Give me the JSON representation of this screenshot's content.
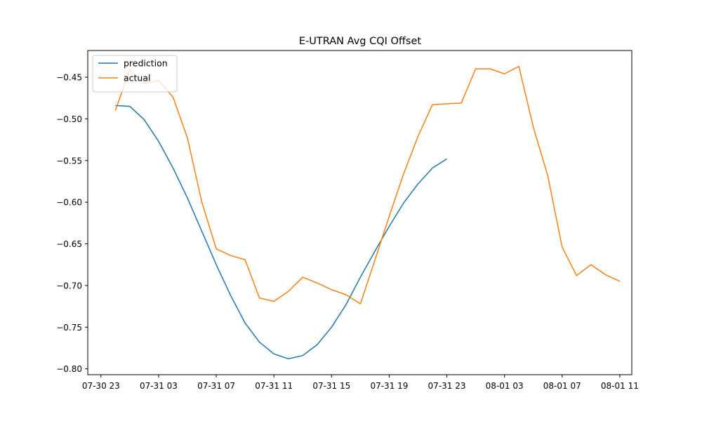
{
  "chart_data": {
    "type": "line",
    "title": "E-UTRAN Avg CQI Offset",
    "xlabel": "",
    "ylabel": "",
    "x_ticks": [
      "07-30 23",
      "07-31 03",
      "07-31 07",
      "07-31 11",
      "07-31 15",
      "07-31 19",
      "07-31 23",
      "08-01 03",
      "08-01 07",
      "08-01 11"
    ],
    "y_ticks": [
      -0.45,
      -0.5,
      -0.55,
      -0.6,
      -0.65,
      -0.7,
      -0.75,
      -0.8
    ],
    "xlim": [
      "07-30 22:05",
      "08-01 11:50"
    ],
    "ylim": [
      -0.807,
      -0.418
    ],
    "grid": false,
    "legend_position": "upper-left",
    "series": [
      {
        "name": "prediction",
        "color": "#1f77b4",
        "x": [
          "07-31 00",
          "07-31 01",
          "07-31 02",
          "07-31 03",
          "07-31 04",
          "07-31 05",
          "07-31 06",
          "07-31 07",
          "07-31 08",
          "07-31 09",
          "07-31 10",
          "07-31 11",
          "07-31 12",
          "07-31 13",
          "07-31 14",
          "07-31 15",
          "07-31 16",
          "07-31 17",
          "07-31 18",
          "07-31 19",
          "07-31 20",
          "07-31 21",
          "07-31 22",
          "07-31 23"
        ],
        "values": [
          -0.484,
          -0.485,
          -0.501,
          -0.527,
          -0.559,
          -0.595,
          -0.635,
          -0.675,
          -0.712,
          -0.745,
          -0.768,
          -0.782,
          -0.788,
          -0.784,
          -0.771,
          -0.75,
          -0.723,
          -0.69,
          -0.659,
          -0.629,
          -0.601,
          -0.578,
          -0.559,
          -0.548
        ]
      },
      {
        "name": "actual",
        "color": "#ff7f0e",
        "x": [
          "07-31 00",
          "07-31 01",
          "07-31 02",
          "07-31 03",
          "07-31 04",
          "07-31 05",
          "07-31 06",
          "07-31 07",
          "07-31 08",
          "07-31 09",
          "07-31 10",
          "07-31 11",
          "07-31 12",
          "07-31 13",
          "07-31 14",
          "07-31 15",
          "07-31 16",
          "07-31 17",
          "07-31 18",
          "07-31 19",
          "07-31 20",
          "07-31 21",
          "07-31 22",
          "07-31 23",
          "08-01 00",
          "08-01 01",
          "08-01 02",
          "08-01 03",
          "08-01 04",
          "08-01 05",
          "08-01 06",
          "08-01 07",
          "08-01 08",
          "08-01 09",
          "08-01 10",
          "08-01 11"
        ],
        "values": [
          -0.49,
          -0.441,
          -0.457,
          -0.454,
          -0.474,
          -0.523,
          -0.6,
          -0.656,
          -0.664,
          -0.669,
          -0.715,
          -0.719,
          -0.707,
          -0.69,
          -0.697,
          -0.705,
          -0.711,
          -0.722,
          -0.67,
          -0.617,
          -0.566,
          -0.521,
          -0.483,
          -0.482,
          -0.481,
          -0.44,
          -0.44,
          -0.446,
          -0.437,
          -0.51,
          -0.568,
          -0.654,
          -0.688,
          -0.675,
          -0.687,
          -0.695
        ]
      }
    ]
  }
}
